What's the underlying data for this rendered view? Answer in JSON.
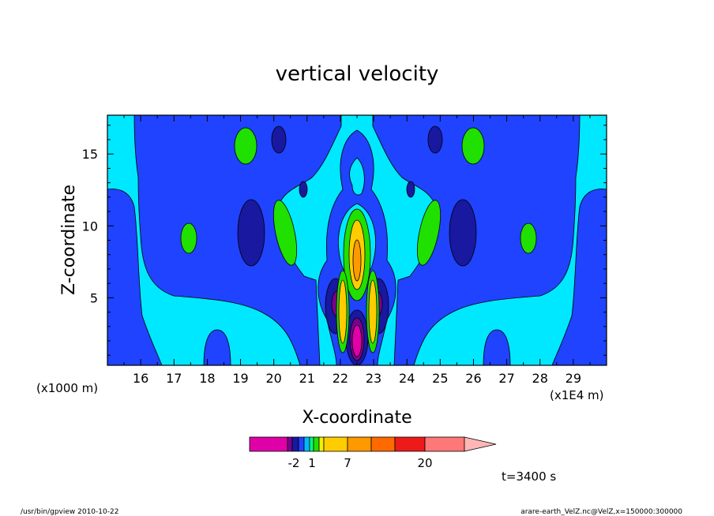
{
  "chart_data": {
    "type": "heatmap",
    "subtype": "filled-contour",
    "title": "vertical velocity",
    "xlabel": "X-coordinate",
    "ylabel": "Z-coordinate",
    "x_unit_label": "(x1E4 m)",
    "y_unit_label": "(x1000 m)",
    "xlim": [
      15.0,
      30.0
    ],
    "ylim": [
      0.3,
      17.7
    ],
    "xticks": [
      16,
      17,
      18,
      19,
      20,
      21,
      22,
      23,
      24,
      25,
      26,
      27,
      28,
      29
    ],
    "yticks": [
      5,
      10,
      15
    ],
    "colorbar": {
      "label_values": [
        "-2",
        "1",
        "7",
        "20"
      ],
      "colors": [
        "#e000a8",
        "#7a0090",
        "#1818a0",
        "#1f43ff",
        "#00b8ff",
        "#00ff80",
        "#20e000",
        "#f0f000",
        "#ffcc00",
        "#ff9900",
        "#ff6a00",
        "#ee1a1a",
        "#ff7878",
        "#ffb6b6"
      ]
    },
    "time_label": "t=3400 s",
    "field_colors": {
      "background": "#00e8ff",
      "negative_weak": "#1f43ff",
      "negative_mid": "#1818a0",
      "negative_strong": "#7a0090",
      "negative_max": "#e000a8",
      "positive_weak": "#20e000",
      "positive_mid": "#ffcc00"
    }
  },
  "footer": {
    "left": "/usr/bin/gpview   2010-10-22",
    "right": "arare-earth_VelZ.nc@VelZ,x=150000:300000"
  }
}
